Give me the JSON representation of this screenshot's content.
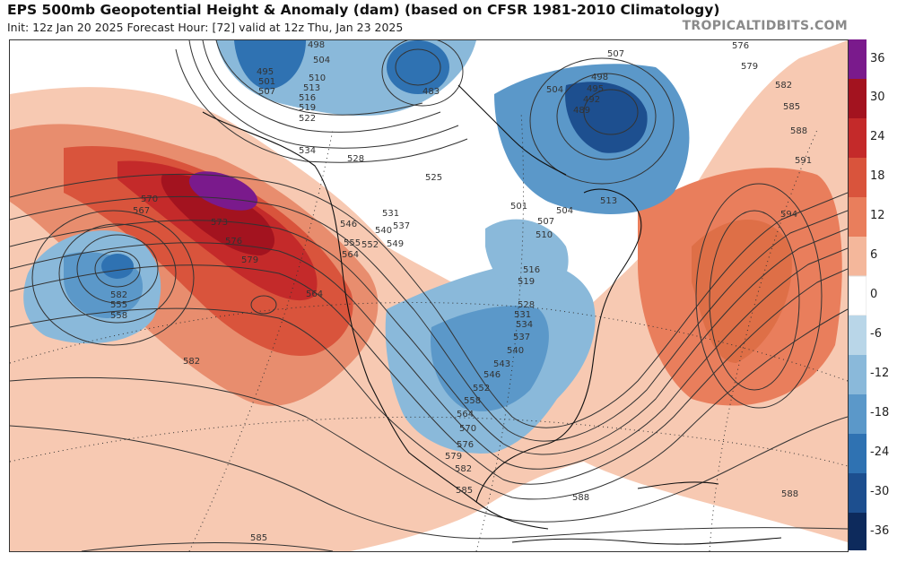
{
  "header": {
    "title": "EPS 500mb Geopotential Height & Anomaly (dam) (based on CFSR 1981-2010 Climatology)",
    "subtitle": "Init: 12z Jan 20 2025   Forecast Hour: [72]   valid at 12z Thu, Jan 23 2025",
    "watermark": "TROPICALTIDBITS.COM"
  },
  "colorbar": {
    "ticks": [
      "36",
      "30",
      "24",
      "18",
      "12",
      "6",
      "0",
      "-6",
      "-12",
      "-18",
      "-24",
      "-30",
      "-36"
    ],
    "colors": {
      "36": "#7a1a8c",
      "30": "#a3131f",
      "24": "#c42a2a",
      "18": "#d9543c",
      "12": "#e97e5c",
      "6": "#f4b79b",
      "0": "#ffffff",
      "-6": "#b9d6e8",
      "-12": "#8ab9da",
      "-18": "#5b98c9",
      "-24": "#2f72b2",
      "-30": "#1d4f8f",
      "-36": "#0d2a5c"
    }
  },
  "contour_labels": [
    "498",
    "504",
    "495",
    "501",
    "507",
    "510",
    "513",
    "516",
    "519",
    "522",
    "534",
    "528",
    "525",
    "531",
    "537",
    "546",
    "540",
    "552",
    "549",
    "555",
    "564",
    "483",
    "507",
    "498",
    "495",
    "492",
    "489",
    "504",
    "501",
    "507",
    "504",
    "510",
    "513",
    "516",
    "519",
    "528",
    "531",
    "534",
    "537",
    "540",
    "543",
    "546",
    "552",
    "558",
    "564",
    "570",
    "576",
    "579",
    "582",
    "585",
    "588",
    "570",
    "567",
    "573",
    "576",
    "579",
    "582",
    "555",
    "558",
    "564",
    "582",
    "585",
    "576",
    "579",
    "582",
    "585",
    "588",
    "591",
    "594",
    "588"
  ]
}
